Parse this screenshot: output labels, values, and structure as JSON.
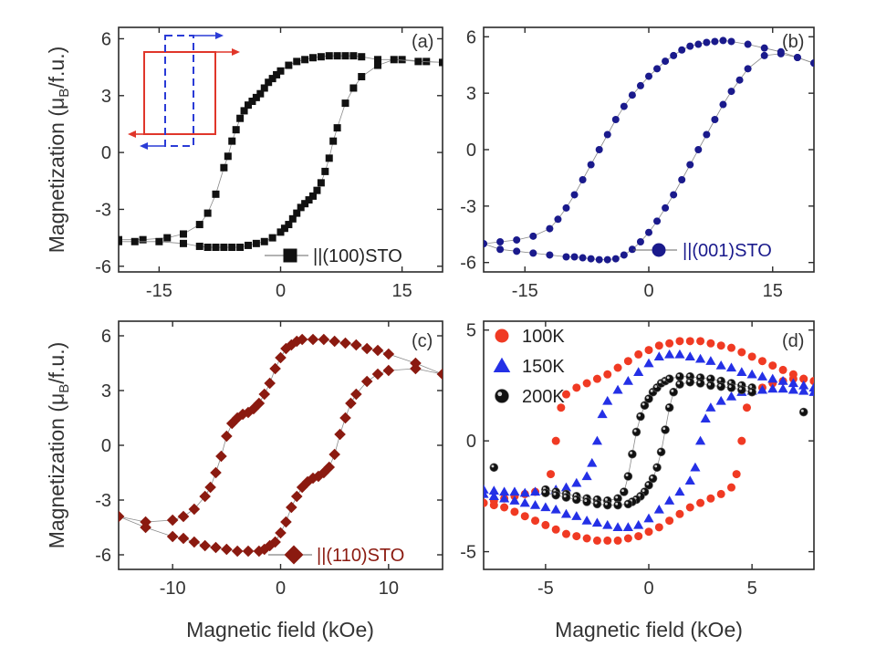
{
  "chart_data": [
    {
      "panel": "(a)",
      "type": "scatter",
      "xlim": [
        -20,
        20
      ],
      "ylim": [
        -6.3,
        6.6
      ],
      "xticks": [
        "-15",
        "0",
        "15"
      ],
      "yticks": [
        "6",
        "3",
        "0",
        "-3",
        "-6"
      ],
      "ylabel": "Magnetization (μB/f.u.)",
      "legend": "||(100)STO",
      "legend_position": "bottom-right",
      "marker": "square",
      "color": "#111111",
      "inset": "schematic rectangular hysteresis loops (red solid, blue dashed)",
      "series": [
        {
          "branch": "upper",
          "x": [
            -20,
            -17,
            -14,
            -12,
            -10,
            -9,
            -8,
            -7,
            -6.5,
            -6,
            -5.5,
            -5,
            -4.5,
            -4,
            -3.5,
            -3,
            -2.5,
            -2,
            -1.5,
            -1,
            -0.5,
            0,
            1,
            2,
            3,
            4,
            5,
            6,
            7,
            8,
            9,
            10,
            12,
            15,
            18,
            20
          ],
          "y": [
            -4.6,
            -4.6,
            -4.5,
            -4.3,
            -3.8,
            -3.2,
            -2.2,
            -0.8,
            -0.2,
            0.6,
            1.2,
            1.8,
            2.2,
            2.5,
            2.7,
            2.9,
            3.1,
            3.4,
            3.7,
            3.9,
            4.1,
            4.3,
            4.6,
            4.8,
            4.9,
            5.0,
            5.05,
            5.1,
            5.1,
            5.1,
            5.1,
            5.05,
            4.9,
            4.9,
            4.8,
            4.75
          ]
        },
        {
          "branch": "lower",
          "x": [
            20,
            17,
            14,
            12,
            10,
            9,
            8,
            7,
            6.5,
            6,
            5.5,
            5,
            4.5,
            4,
            3.5,
            3,
            2.5,
            2,
            1.5,
            1,
            0.5,
            0,
            -1,
            -2,
            -3,
            -4,
            -5,
            -6,
            -7,
            -8,
            -9,
            -10,
            -12,
            -15,
            -18,
            -20
          ],
          "y": [
            4.75,
            4.8,
            4.9,
            4.6,
            4.0,
            3.4,
            2.6,
            1.3,
            0.6,
            -0.3,
            -1.0,
            -1.6,
            -2.0,
            -2.3,
            -2.5,
            -2.7,
            -2.9,
            -3.2,
            -3.5,
            -3.8,
            -4.0,
            -4.2,
            -4.5,
            -4.7,
            -4.8,
            -4.9,
            -5.0,
            -5.0,
            -5.0,
            -5.0,
            -5.0,
            -4.95,
            -4.8,
            -4.7,
            -4.7,
            -4.7
          ]
        }
      ]
    },
    {
      "panel": "(b)",
      "type": "scatter",
      "xlim": [
        -20,
        20
      ],
      "ylim": [
        -6.5,
        6.5
      ],
      "xticks": [
        "-15",
        "0",
        "15"
      ],
      "yticks": [
        "6",
        "3",
        "0",
        "-3",
        "-6"
      ],
      "legend": "||(001)STO",
      "legend_position": "bottom-right",
      "marker": "circle",
      "color": "#1a1a8c",
      "series": [
        {
          "branch": "upper",
          "x": [
            -20,
            -18,
            -16,
            -14,
            -12,
            -11,
            -10,
            -9,
            -8,
            -7,
            -6,
            -5,
            -4,
            -3,
            -2,
            -1,
            0,
            1,
            2,
            3,
            4,
            5,
            6,
            7,
            8,
            9,
            10,
            12,
            14,
            16,
            18,
            20
          ],
          "y": [
            -5.0,
            -4.9,
            -4.8,
            -4.6,
            -4.2,
            -3.7,
            -3.1,
            -2.4,
            -1.6,
            -0.8,
            0.0,
            0.8,
            1.6,
            2.3,
            2.9,
            3.4,
            3.9,
            4.3,
            4.7,
            5.0,
            5.3,
            5.5,
            5.6,
            5.7,
            5.75,
            5.8,
            5.75,
            5.6,
            5.4,
            5.2,
            4.9,
            4.6
          ]
        },
        {
          "branch": "lower",
          "x": [
            20,
            18,
            16,
            14,
            12,
            11,
            10,
            9,
            8,
            7,
            6,
            5,
            4,
            3,
            2,
            1,
            0,
            -1,
            -2,
            -3,
            -4,
            -5,
            -6,
            -7,
            -8,
            -9,
            -10,
            -12,
            -14,
            -16,
            -18,
            -20
          ],
          "y": [
            4.6,
            4.9,
            5.1,
            5.0,
            4.3,
            3.7,
            3.1,
            2.4,
            1.6,
            0.8,
            0.0,
            -0.8,
            -1.6,
            -2.4,
            -3.1,
            -3.8,
            -4.4,
            -4.9,
            -5.3,
            -5.6,
            -5.8,
            -5.85,
            -5.85,
            -5.8,
            -5.75,
            -5.7,
            -5.7,
            -5.6,
            -5.5,
            -5.4,
            -5.3,
            -5.0
          ]
        }
      ]
    },
    {
      "panel": "(c)",
      "type": "scatter",
      "xlim": [
        -15,
        15
      ],
      "ylim": [
        -6.8,
        6.8
      ],
      "xticks": [
        "-10",
        "0",
        "10"
      ],
      "yticks": [
        "6",
        "3",
        "0",
        "-3",
        "-6"
      ],
      "xlabel": "Magnetic field (kOe)",
      "ylabel": "Magnetization (μB/f.u.)",
      "legend": "||(110)STO",
      "legend_position": "bottom-right",
      "marker": "diamond",
      "color": "#8b1a10",
      "series": [
        {
          "branch": "upper",
          "x": [
            -15,
            -12.5,
            -10,
            -9,
            -8,
            -7,
            -6.5,
            -6,
            -5.5,
            -5,
            -4.5,
            -4,
            -3.5,
            -3,
            -2.5,
            -2,
            -1.5,
            -1,
            -0.5,
            0,
            0.5,
            1,
            1.5,
            2,
            3,
            4,
            5,
            6,
            7,
            8,
            9,
            10,
            12.5,
            15
          ],
          "y": [
            -3.9,
            -4.2,
            -4.1,
            -3.9,
            -3.5,
            -2.8,
            -2.3,
            -1.5,
            -0.6,
            0.5,
            1.2,
            1.5,
            1.7,
            1.8,
            2.0,
            2.3,
            2.8,
            3.4,
            4.2,
            4.8,
            5.3,
            5.5,
            5.7,
            5.8,
            5.8,
            5.8,
            5.7,
            5.6,
            5.5,
            5.3,
            5.2,
            5.0,
            4.5,
            3.9
          ]
        },
        {
          "branch": "lower",
          "x": [
            15,
            12.5,
            10,
            9,
            8,
            7,
            6.5,
            6,
            5.5,
            5,
            4.5,
            4,
            3.5,
            3,
            2.5,
            2,
            1.5,
            1,
            0.5,
            0,
            -0.5,
            -1,
            -1.5,
            -2,
            -3,
            -4,
            -5,
            -6,
            -7,
            -8,
            -9,
            -10,
            -12.5,
            -15
          ],
          "y": [
            3.9,
            4.2,
            4.1,
            3.9,
            3.5,
            2.8,
            2.3,
            1.5,
            0.6,
            -0.5,
            -1.2,
            -1.5,
            -1.7,
            -1.8,
            -2.0,
            -2.3,
            -2.8,
            -3.4,
            -4.2,
            -4.8,
            -5.3,
            -5.5,
            -5.7,
            -5.8,
            -5.8,
            -5.8,
            -5.7,
            -5.6,
            -5.5,
            -5.3,
            -5.1,
            -5.0,
            -4.5,
            -3.9
          ]
        }
      ]
    },
    {
      "panel": "(d)",
      "type": "scatter",
      "xlim": [
        -8,
        8
      ],
      "ylim": [
        -5.8,
        5.4
      ],
      "xticks": [
        "-5",
        "0",
        "5"
      ],
      "yticks": [
        "5",
        "0",
        "-5"
      ],
      "xlabel": "Magnetic field (kOe)",
      "legend_position": "top-left",
      "series": [
        {
          "name": "100K",
          "marker": "circle",
          "color": "#f03a23",
          "upper": {
            "x": [
              -8,
              -7.5,
              -7,
              -6.5,
              -6,
              -5.5,
              -5,
              -4.75,
              -4.5,
              -4.25,
              -4,
              -3.5,
              -3,
              -2.5,
              -2,
              -1.5,
              -1,
              -0.5,
              0,
              0.5,
              1,
              1.5,
              2,
              2.5,
              3,
              3.5,
              4,
              4.5,
              5,
              5.5,
              6,
              6.5,
              7,
              7.5,
              8
            ],
            "y": [
              -2.8,
              -2.7,
              -2.6,
              -2.5,
              -2.4,
              -2.3,
              -2.2,
              -1.5,
              0.0,
              1.5,
              2.1,
              2.4,
              2.6,
              2.8,
              3.0,
              3.3,
              3.6,
              3.9,
              4.1,
              4.3,
              4.4,
              4.5,
              4.5,
              4.5,
              4.4,
              4.3,
              4.2,
              4.0,
              3.8,
              3.6,
              3.4,
              3.2,
              3.0,
              2.8,
              2.7
            ]
          },
          "lower": {
            "x": [
              8,
              7.5,
              7,
              6.5,
              6,
              5.5,
              5,
              4.75,
              4.5,
              4.25,
              4,
              3.5,
              3,
              2.5,
              2,
              1.5,
              1,
              0.5,
              0,
              -0.5,
              -1,
              -1.5,
              -2,
              -2.5,
              -3,
              -3.5,
              -4,
              -4.5,
              -5,
              -5.5,
              -6,
              -6.5,
              -7,
              -7.5,
              -8
            ],
            "y": [
              2.7,
              2.8,
              2.8,
              2.7,
              2.6,
              2.4,
              2.2,
              1.5,
              0.0,
              -1.5,
              -2.1,
              -2.4,
              -2.6,
              -2.8,
              -3.0,
              -3.3,
              -3.6,
              -3.9,
              -4.1,
              -4.3,
              -4.4,
              -4.5,
              -4.5,
              -4.5,
              -4.4,
              -4.3,
              -4.2,
              -4.0,
              -3.8,
              -3.6,
              -3.4,
              -3.2,
              -3.0,
              -2.9,
              -2.8
            ]
          }
        },
        {
          "name": "150K",
          "marker": "triangle",
          "color": "#2430e6",
          "upper": {
            "x": [
              -8,
              -7.5,
              -7,
              -6.5,
              -6,
              -5.5,
              -5,
              -4.5,
              -4,
              -3.5,
              -3,
              -2.75,
              -2.5,
              -2.25,
              -2,
              -1.5,
              -1,
              -0.5,
              0,
              0.5,
              1,
              1.5,
              2,
              2.5,
              3,
              3.5,
              4,
              4.5,
              5,
              5.5,
              6,
              6.5,
              7,
              7.5,
              8
            ],
            "y": [
              -2.2,
              -2.25,
              -2.3,
              -2.3,
              -2.35,
              -2.3,
              -2.25,
              -2.2,
              -2.1,
              -1.9,
              -1.6,
              -1.0,
              0.0,
              1.2,
              1.8,
              2.3,
              2.7,
              3.1,
              3.5,
              3.8,
              3.9,
              3.9,
              3.8,
              3.7,
              3.6,
              3.4,
              3.3,
              3.1,
              3.0,
              2.9,
              2.8,
              2.7,
              2.6,
              2.5,
              2.4
            ]
          },
          "lower": {
            "x": [
              8,
              7.5,
              7,
              6.5,
              6,
              5.5,
              5,
              4.5,
              4,
              3.5,
              3,
              2.75,
              2.5,
              2.25,
              2,
              1.5,
              1,
              0.5,
              0,
              -0.5,
              -1,
              -1.5,
              -2,
              -2.5,
              -3,
              -3.5,
              -4,
              -4.5,
              -5,
              -5.5,
              -6,
              -6.5,
              -7,
              -7.5,
              -8
            ],
            "y": [
              2.2,
              2.25,
              2.3,
              2.35,
              2.35,
              2.3,
              2.25,
              2.2,
              2.0,
              1.8,
              1.5,
              1.0,
              0.0,
              -1.2,
              -1.8,
              -2.3,
              -2.7,
              -3.1,
              -3.5,
              -3.8,
              -3.9,
              -3.9,
              -3.8,
              -3.7,
              -3.6,
              -3.4,
              -3.3,
              -3.1,
              -3.0,
              -2.9,
              -2.8,
              -2.7,
              -2.6,
              -2.5,
              -2.4
            ]
          }
        },
        {
          "name": "200K",
          "marker": "sphere",
          "color": "#111111",
          "upper": {
            "x": [
              -5,
              -4.5,
              -4,
              -3.5,
              -3,
              -2.5,
              -2,
              -1.5,
              -1.2,
              -1,
              -0.8,
              -0.6,
              -0.4,
              -0.2,
              0,
              0.2,
              0.4,
              0.6,
              0.8,
              1,
              1.5,
              2,
              2.5,
              3,
              3.5,
              4,
              4.5,
              5
            ],
            "y": [
              -2.2,
              -2.3,
              -2.4,
              -2.5,
              -2.6,
              -2.65,
              -2.7,
              -2.6,
              -2.3,
              -1.6,
              -0.6,
              0.4,
              1.1,
              1.6,
              1.9,
              2.2,
              2.4,
              2.6,
              2.7,
              2.8,
              2.9,
              2.9,
              2.85,
              2.8,
              2.7,
              2.6,
              2.5,
              2.4
            ]
          },
          "lower": {
            "x": [
              5,
              4.5,
              4,
              3.5,
              3,
              2.5,
              2,
              1.5,
              1.2,
              1,
              0.8,
              0.6,
              0.4,
              0.2,
              0,
              -0.2,
              -0.4,
              -0.6,
              -0.8,
              -1,
              -1.5,
              -2,
              -2.5,
              -3,
              -3.5,
              -4,
              -4.5,
              -5
            ],
            "y": [
              2.2,
              2.3,
              2.4,
              2.45,
              2.5,
              2.6,
              2.65,
              2.55,
              2.2,
              1.5,
              0.5,
              -0.5,
              -1.2,
              -1.7,
              -2.0,
              -2.3,
              -2.5,
              -2.65,
              -2.75,
              -2.85,
              -2.9,
              -2.9,
              -2.85,
              -2.75,
              -2.65,
              -2.55,
              -2.45,
              -2.35
            ]
          },
          "extra": {
            "x": [
              -7.5,
              7.5
            ],
            "y": [
              -1.2,
              1.3
            ]
          }
        }
      ]
    }
  ]
}
